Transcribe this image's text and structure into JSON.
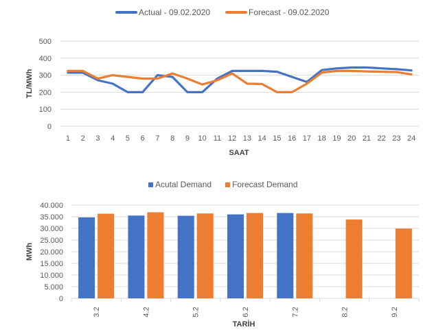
{
  "chart_data": [
    {
      "type": "line",
      "xlabel": "SAAT",
      "ylabel": "TL/MWh",
      "ylim": [
        0,
        500
      ],
      "yticks": [
        "0",
        "100",
        "200",
        "300",
        "400",
        "500"
      ],
      "grid": true,
      "legend_position": "top",
      "x": [
        "1",
        "2",
        "3",
        "4",
        "5",
        "6",
        "7",
        "8",
        "9",
        "10",
        "11",
        "12",
        "13",
        "14",
        "15",
        "16",
        "17",
        "18",
        "19",
        "20",
        "21",
        "22",
        "23",
        "24"
      ],
      "series": [
        {
          "name": "Actual - 09.02.2020",
          "color": "#4472C4",
          "values": [
            315,
            315,
            270,
            250,
            200,
            200,
            300,
            290,
            200,
            200,
            280,
            325,
            325,
            325,
            320,
            290,
            260,
            330,
            340,
            345,
            345,
            340,
            335,
            328
          ]
        },
        {
          "name": "Forecast - 09.02.2020",
          "color": "#ED7D31",
          "values": [
            325,
            325,
            280,
            300,
            290,
            280,
            280,
            310,
            280,
            245,
            270,
            310,
            250,
            248,
            200,
            200,
            250,
            315,
            325,
            325,
            322,
            320,
            318,
            305
          ]
        }
      ]
    },
    {
      "type": "bar",
      "xlabel": "TARİH",
      "ylabel": "MWh",
      "ylim": [
        0,
        40000
      ],
      "yticks": [
        "0",
        "5.000",
        "10.000",
        "15.000",
        "20.000",
        "25.000",
        "30.000",
        "35.000",
        "40.000"
      ],
      "grid": true,
      "legend_position": "top",
      "categories": [
        "3.2",
        "4.2",
        "5.2",
        "6.2",
        "7.2",
        "8.2",
        "9.2"
      ],
      "series": [
        {
          "name": "Acutal Demand",
          "color": "#4472C4",
          "values": [
            34700,
            35500,
            35400,
            36000,
            36600,
            null,
            null
          ]
        },
        {
          "name": "Forecast Demand",
          "color": "#ED7D31",
          "values": [
            36300,
            36900,
            36400,
            36600,
            36400,
            33800,
            29900
          ]
        }
      ]
    }
  ]
}
